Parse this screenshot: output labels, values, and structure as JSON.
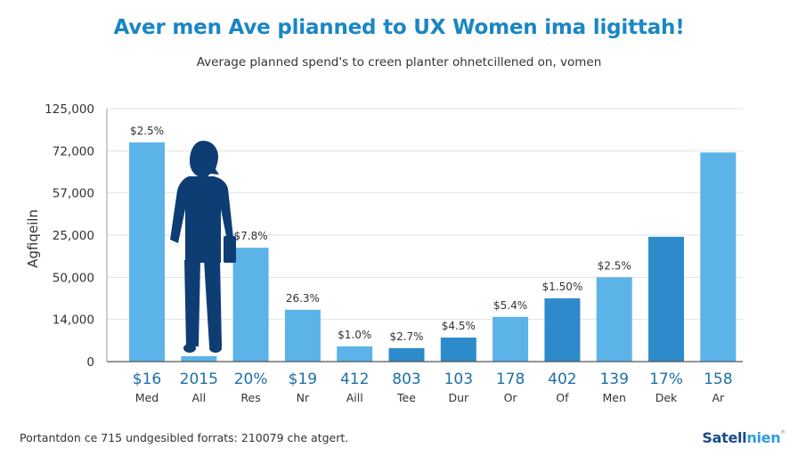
{
  "chart_data": {
    "type": "bar",
    "title": "Aver men Ave plianned to UX Women ima ligittah!",
    "subtitle": "Average planned spend's to creen planter ohnetcillened on, vomen",
    "ylabel": "Agfiqeiln",
    "xlabel": "",
    "y_tick_labels": [
      "0",
      "14,000",
      "50,000",
      "25,000",
      "57,000",
      "72,000",
      "125,000"
    ],
    "ylim_index": [
      0,
      6
    ],
    "grid": true,
    "legend": "none",
    "categories": [
      "Med",
      "All",
      "Res",
      "Nr",
      "Aill",
      "Tee",
      "Dur",
      "Or",
      "Of",
      "Men",
      "Dek",
      "Ar"
    ],
    "category_values": [
      "$16",
      "2015",
      "20%",
      "$19",
      "412",
      "803",
      "103",
      "178",
      "402",
      "139",
      "17%",
      "158"
    ],
    "values_index": [
      5.2,
      0.13,
      2.7,
      1.23,
      0.36,
      0.32,
      0.57,
      1.06,
      1.5,
      2.0,
      2.96,
      4.96
    ],
    "data_labels": [
      "$2.5%",
      "",
      "$7.8%",
      "26.3%",
      "$1.0%",
      "$2.7%",
      "$4.5%",
      "$5.4%",
      "$1.50%",
      "$2.5%",
      "",
      ""
    ],
    "bar_shades": [
      "light",
      "light",
      "light",
      "light",
      "light",
      "dark",
      "dark",
      "light",
      "dark",
      "light",
      "dark",
      "light"
    ],
    "colors": {
      "light": "#5cb3e8",
      "dark": "#2e8bcb",
      "silhouette": "#0d3d73",
      "title": "#1a86c4",
      "category_value": "#1a6fa8"
    },
    "illustration": "woman-silhouette"
  },
  "footer": {
    "note": "Portantdon ce 715 undgesibled forrats: 210079 che atgert.",
    "brand_dark": "Satell",
    "brand_light": "nien",
    "brand_mark": "®"
  }
}
